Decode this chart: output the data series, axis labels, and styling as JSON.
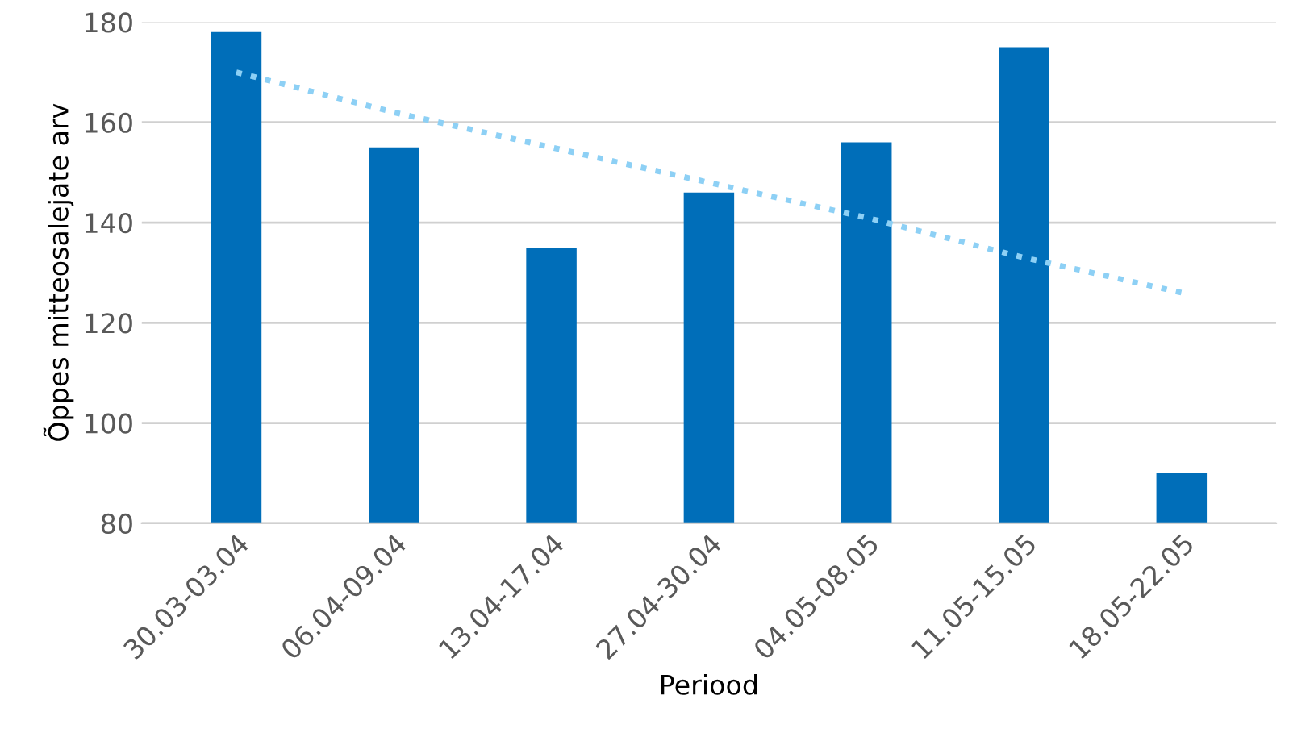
{
  "chart_data": {
    "type": "bar",
    "xlabel": "Periood",
    "ylabel": "Õppes mitteosalejate arv",
    "categories": [
      "30.03-03.04",
      "06.04-09.04",
      "13.04-17.04",
      "27.04-30.04",
      "04.05-08.05",
      "11.05-15.05",
      "18.05-22.05"
    ],
    "series": [
      {
        "color": "#006eb9",
        "values": [
          178,
          155,
          135,
          146,
          156,
          175,
          90
        ]
      },
      {
        "type": "line",
        "color": "#8dd0f5",
        "line_style": "dotted",
        "values": [
          170,
          162,
          155,
          148,
          141,
          133,
          126
        ]
      }
    ],
    "ylim": [
      80,
      180
    ],
    "yticks": [
      80,
      100,
      120,
      140,
      160,
      180
    ],
    "grid": "y",
    "legend": false
  }
}
